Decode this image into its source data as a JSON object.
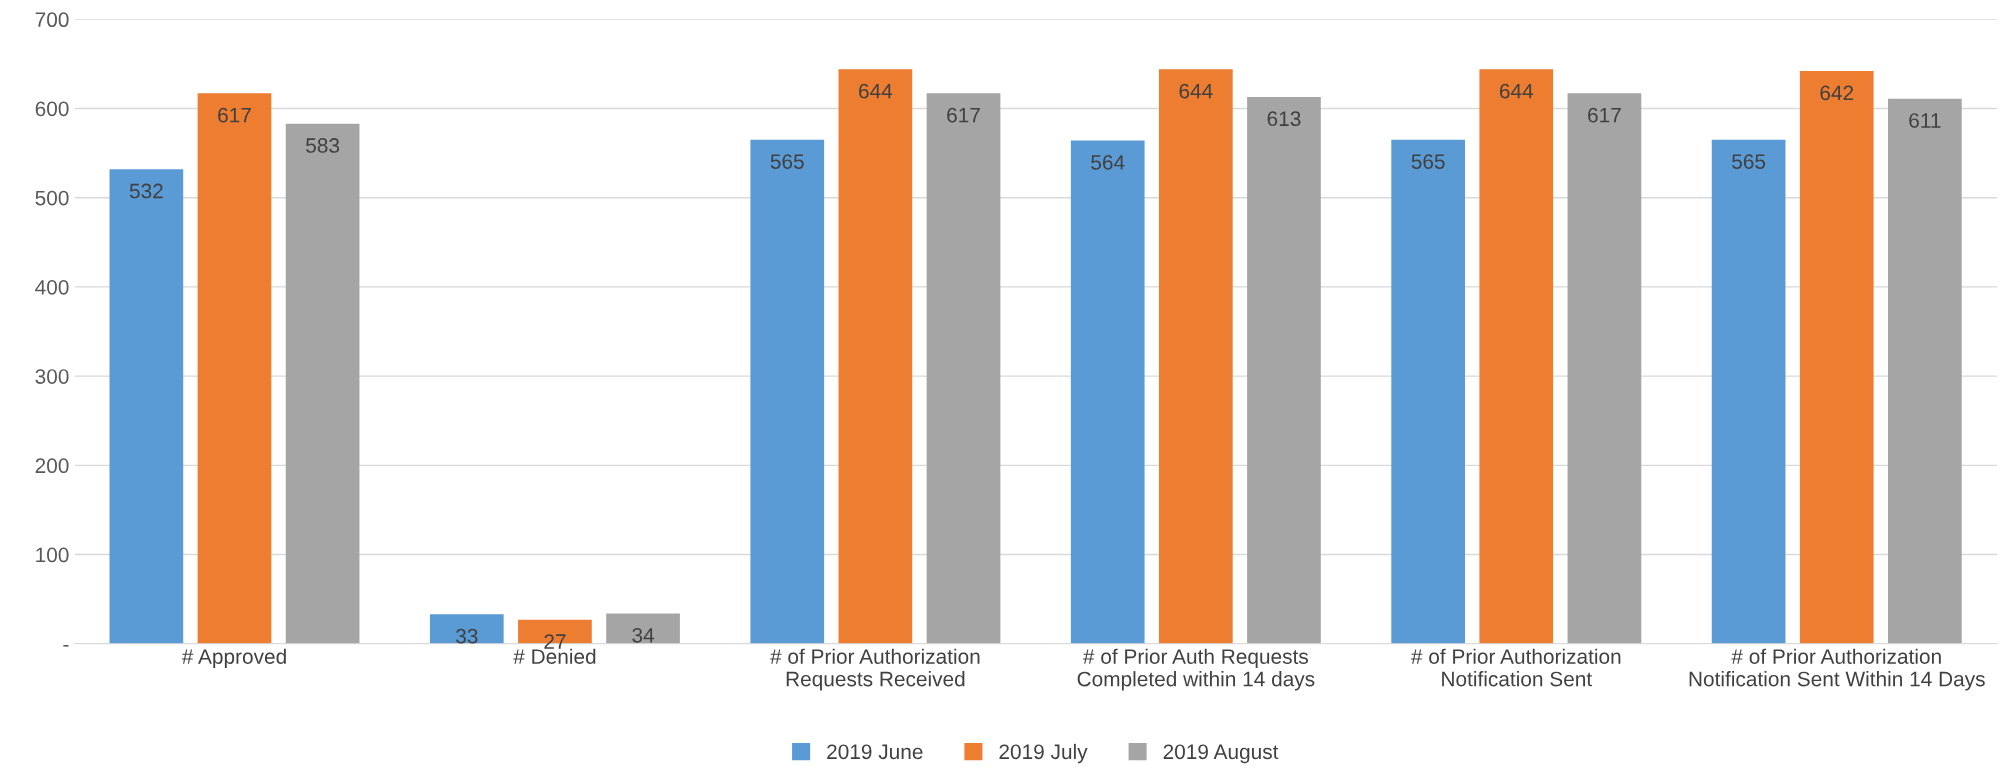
{
  "chart_data": {
    "type": "bar",
    "categories": [
      "# Approved",
      "# Denied",
      "# of Prior Authorization\nRequests Received",
      "# of Prior Auth Requests\nCompleted within 14 days",
      "# of Prior Authorization\nNotification Sent",
      "# of Prior Authorization\nNotification Sent Within 14 Days"
    ],
    "series": [
      {
        "name": "2019 June",
        "color": "#5b9bd5",
        "values": [
          532,
          33,
          565,
          564,
          565,
          565
        ]
      },
      {
        "name": "2019 July",
        "color": "#ed7d31",
        "values": [
          617,
          27,
          644,
          644,
          644,
          642
        ]
      },
      {
        "name": "2019 August",
        "color": "#a5a5a5",
        "values": [
          583,
          34,
          617,
          613,
          617,
          611
        ]
      }
    ],
    "ylim": [
      0,
      700
    ],
    "yticks": [
      {
        "value": 0,
        "label": "-"
      },
      100,
      200,
      300,
      400,
      500,
      600,
      700
    ],
    "grid": "y",
    "legend": "bottom",
    "data_labels": true
  }
}
